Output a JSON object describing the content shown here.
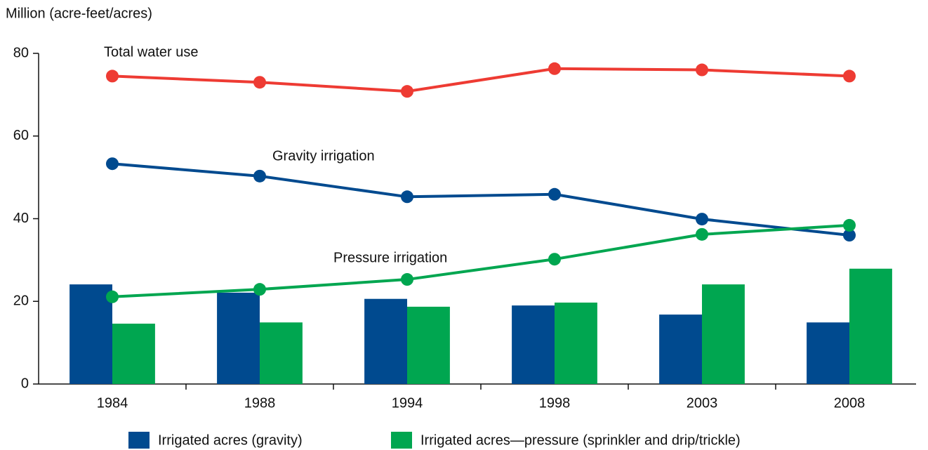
{
  "chart_data": {
    "type": "bar",
    "y_label": "Million (acre-feet/acres)",
    "categories": [
      "1984",
      "1988",
      "1994",
      "1998",
      "2003",
      "2008"
    ],
    "series": [
      {
        "name": "Irrigated acres (gravity)",
        "type": "bar",
        "color": "#004a8f",
        "values": [
          24.1,
          22.1,
          20.6,
          19.0,
          16.8,
          14.9
        ]
      },
      {
        "name": "Irrigated acres—pressure (sprinkler and drip/trickle)",
        "type": "bar",
        "color": "#00a650",
        "values": [
          14.6,
          14.9,
          18.7,
          19.7,
          24.1,
          27.9
        ]
      },
      {
        "name": "Total water use",
        "type": "line",
        "color": "#ee3b33",
        "values": [
          74.5,
          73.0,
          70.8,
          76.3,
          76.0,
          74.5
        ]
      },
      {
        "name": "Gravity irrigation",
        "type": "line",
        "color": "#004a8f",
        "values": [
          53.3,
          50.3,
          45.3,
          45.9,
          39.9,
          36.0
        ]
      },
      {
        "name": "Pressure irrigation",
        "type": "line",
        "color": "#00a650",
        "values": [
          21.1,
          22.9,
          25.3,
          30.2,
          36.2,
          38.4
        ]
      }
    ],
    "ylim": [
      0,
      80
    ],
    "yticks": [
      0,
      20,
      40,
      60,
      80
    ],
    "grid": false
  }
}
